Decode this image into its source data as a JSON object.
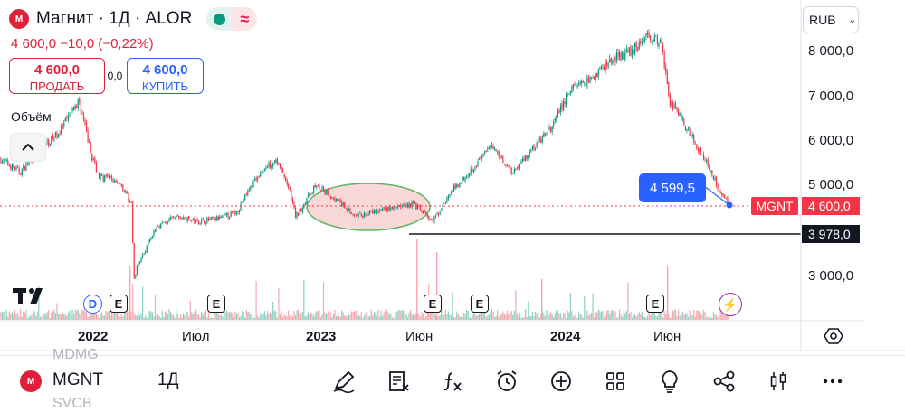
{
  "header": {
    "title": "Магнит · 1Д · ALOR",
    "logo_icon": "magnit-logo-icon",
    "status_icons": [
      "market-open-dot-icon",
      "approx-data-icon"
    ],
    "quote": "4 600,0  −10,0 (−0,22%)"
  },
  "trade": {
    "sell_price": "4 600,0",
    "sell_label": "ПРОДАТЬ",
    "spread": "0,0",
    "buy_price": "4 600,0",
    "buy_label": "КУПИТЬ"
  },
  "indicator": {
    "volume_label": "Объём"
  },
  "currency": {
    "label": "RUB"
  },
  "colors": {
    "up": "#089981",
    "down": "#f23645",
    "accent": "#2962ff",
    "brand": "#e0203a",
    "highlight_fill": "#f9d4d4",
    "highlight_stroke": "#4caf50"
  },
  "chart_data": {
    "type": "candlestick",
    "symbol": "MGNT",
    "interval": "1D",
    "last_price": 4600.0,
    "y_axis": {
      "ticks": [
        "8 000,0",
        "7 000,0",
        "6 000,0",
        "5 000,0",
        "3 000,0"
      ],
      "range": [
        2500,
        8900
      ]
    },
    "x_axis": {
      "ticks": [
        "2022",
        "Июл",
        "2023",
        "Июн",
        "2024",
        "Июн"
      ]
    },
    "price_path": [
      {
        "d": "2021-08",
        "p": 5600
      },
      {
        "d": "2021-09",
        "p": 5300
      },
      {
        "d": "2021-10",
        "p": 5800
      },
      {
        "d": "2021-11",
        "p": 6200
      },
      {
        "d": "2021-12",
        "p": 6900
      },
      {
        "d": "2021-12-20",
        "p": 5700
      },
      {
        "d": "2022-01",
        "p": 5200
      },
      {
        "d": "2022-02",
        "p": 5100
      },
      {
        "d": "2022-02-20",
        "p": 4600
      },
      {
        "d": "2022-02-24",
        "p": 2900
      },
      {
        "d": "2022-03",
        "p": 3200
      },
      {
        "d": "2022-04",
        "p": 4100
      },
      {
        "d": "2022-05",
        "p": 4300
      },
      {
        "d": "2022-06",
        "p": 4200
      },
      {
        "d": "2022-07",
        "p": 4250
      },
      {
        "d": "2022-08",
        "p": 4400
      },
      {
        "d": "2022-09",
        "p": 5200
      },
      {
        "d": "2022-10",
        "p": 5600
      },
      {
        "d": "2022-10-20",
        "p": 5000
      },
      {
        "d": "2022-11",
        "p": 4300
      },
      {
        "d": "2022-12",
        "p": 5000
      },
      {
        "d": "2023-01",
        "p": 4700
      },
      {
        "d": "2023-02",
        "p": 4300
      },
      {
        "d": "2023-03",
        "p": 4400
      },
      {
        "d": "2023-04",
        "p": 4500
      },
      {
        "d": "2023-05",
        "p": 4600
      },
      {
        "d": "2023-06",
        "p": 4200
      },
      {
        "d": "2023-07",
        "p": 4900
      },
      {
        "d": "2023-08",
        "p": 5400
      },
      {
        "d": "2023-09",
        "p": 5900
      },
      {
        "d": "2023-10",
        "p": 5300
      },
      {
        "d": "2023-11",
        "p": 5800
      },
      {
        "d": "2023-12",
        "p": 6300
      },
      {
        "d": "2024-01",
        "p": 7200
      },
      {
        "d": "2024-02",
        "p": 7400
      },
      {
        "d": "2024-03",
        "p": 7800
      },
      {
        "d": "2024-04",
        "p": 8000
      },
      {
        "d": "2024-05",
        "p": 8400
      },
      {
        "d": "2024-05-20",
        "p": 8100
      },
      {
        "d": "2024-06",
        "p": 6900
      },
      {
        "d": "2024-07",
        "p": 6200
      },
      {
        "d": "2024-08",
        "p": 5400
      },
      {
        "d": "2024-08-20",
        "p": 4800
      },
      {
        "d": "2024-09",
        "p": 4600
      }
    ],
    "highlight_ellipse": {
      "from": "2022-12",
      "to": "2023-06",
      "price": 4600
    },
    "horizontal_line": {
      "price": 3978.0,
      "label": "3 978,0"
    },
    "price_line": {
      "price": 4600.0,
      "label": "4 600,0",
      "symbol_label": "MGNT"
    },
    "callout": {
      "label": "4 599,5",
      "price": 4599.5
    },
    "events": [
      {
        "type": "D",
        "d": "2021-12"
      },
      {
        "type": "E",
        "d": "2022-02"
      },
      {
        "type": "E",
        "d": "2022-07"
      },
      {
        "type": "E",
        "d": "2023-06"
      },
      {
        "type": "E",
        "d": "2023-08"
      },
      {
        "type": "E",
        "d": "2024-05"
      },
      {
        "type": "bolt",
        "d": "2024-09"
      }
    ]
  },
  "toolbar": {
    "ticker": "MGNT",
    "resolution": "1Д",
    "ghost_above": "MDMG",
    "ghost_below": "SVCB",
    "icons": [
      "draw-icon",
      "notes-icon",
      "indicators-icon",
      "alert-icon",
      "add-icon",
      "layouts-icon",
      "ideas-icon",
      "share-icon",
      "chart-type-icon",
      "more-icon"
    ]
  }
}
